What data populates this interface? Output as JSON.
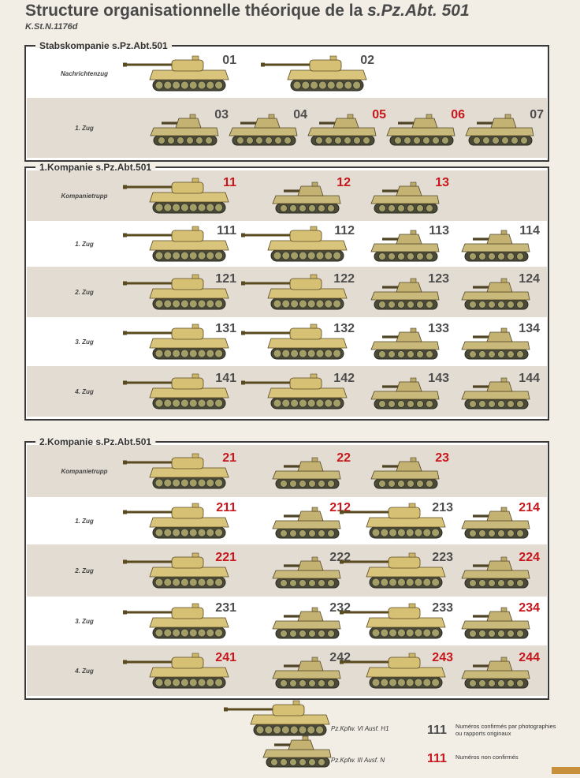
{
  "title": {
    "text": "Structure organisationnelle théorique de la",
    "emphasis": "s.Pz.Abt. 501"
  },
  "subtitle": "K.St.N.1176d",
  "sections": [
    {
      "label": "Stabskompanie s.Pz.Abt.501",
      "rows": [
        {
          "label": "Nachrichtenzug",
          "vehicles": [
            {
              "number": "01",
              "model": "Pz.Kpfw. VI Ausf. H1",
              "color": "#4d4d4d"
            },
            {
              "number": "02",
              "model": "Pz.Kpfw. VI Ausf. H1",
              "color": "#4d4d4d"
            }
          ]
        },
        {
          "label": "1. Zug",
          "vehicles": [
            {
              "number": "03",
              "model": "Pz.Kpfw. III Ausf. N",
              "color": "#4d4d4d"
            },
            {
              "number": "04",
              "model": "Pz.Kpfw. III Ausf. N",
              "color": "#4d4d4d"
            },
            {
              "number": "05",
              "model": "Pz.Kpfw. III Ausf. N",
              "color": "#c8161d"
            },
            {
              "number": "06",
              "model": "Pz.Kpfw. III Ausf. N",
              "color": "#c8161d"
            },
            {
              "number": "07",
              "model": "Pz.Kpfw. III Ausf. N",
              "color": "#4d4d4d"
            }
          ]
        }
      ]
    },
    {
      "label": "1.Kompanie s.Pz.Abt.501",
      "rows": [
        {
          "label": "Kompanietrupp",
          "vehicles": [
            {
              "number": "11",
              "model": "Pz.Kpfw. VI Ausf. H1",
              "color": "#c8161d"
            },
            {
              "number": "12",
              "model": "Pz.Kpfw. III Ausf. N",
              "color": "#c8161d"
            },
            {
              "number": "13",
              "model": "Pz.Kpfw. III Ausf. N",
              "color": "#c8161d"
            }
          ]
        },
        {
          "label": "1. Zug",
          "vehicles": [
            {
              "number": "111",
              "model": "Pz.Kpfw. VI Ausf. H1",
              "color": "#4d4d4d"
            },
            {
              "number": "112",
              "model": "Pz.Kpfw. VI Ausf. H1",
              "color": "#4d4d4d"
            },
            {
              "number": "113",
              "model": "Pz.Kpfw. III Ausf. N",
              "color": "#4d4d4d"
            },
            {
              "number": "114",
              "model": "Pz.Kpfw. III Ausf. N",
              "color": "#4d4d4d"
            }
          ]
        },
        {
          "label": "2. Zug",
          "vehicles": [
            {
              "number": "121",
              "model": "Pz.Kpfw. VI Ausf. H1",
              "color": "#4d4d4d"
            },
            {
              "number": "122",
              "model": "Pz.Kpfw. VI Ausf. H1",
              "color": "#4d4d4d"
            },
            {
              "number": "123",
              "model": "Pz.Kpfw. III Ausf. N",
              "color": "#4d4d4d"
            },
            {
              "number": "124",
              "model": "Pz.Kpfw. III Ausf. N",
              "color": "#4d4d4d"
            }
          ]
        },
        {
          "label": "3. Zug",
          "vehicles": [
            {
              "number": "131",
              "model": "Pz.Kpfw. VI Ausf. H1",
              "color": "#4d4d4d"
            },
            {
              "number": "132",
              "model": "Pz.Kpfw. VI Ausf. H1",
              "color": "#4d4d4d"
            },
            {
              "number": "133",
              "model": "Pz.Kpfw. III Ausf. N",
              "color": "#4d4d4d"
            },
            {
              "number": "134",
              "model": "Pz.Kpfw. III Ausf. N",
              "color": "#4d4d4d"
            }
          ]
        },
        {
          "label": "4. Zug",
          "vehicles": [
            {
              "number": "141",
              "model": "Pz.Kpfw. VI Ausf. H1",
              "color": "#4d4d4d"
            },
            {
              "number": "142",
              "model": "Pz.Kpfw. VI Ausf. H1",
              "color": "#4d4d4d"
            },
            {
              "number": "143",
              "model": "Pz.Kpfw. III Ausf. N",
              "color": "#4d4d4d"
            },
            {
              "number": "144",
              "model": "Pz.Kpfw. III Ausf. N",
              "color": "#4d4d4d"
            }
          ]
        }
      ]
    },
    {
      "label": "2.Kompanie s.Pz.Abt.501",
      "rows": [
        {
          "label": "Kompanietrupp",
          "vehicles": [
            {
              "number": "21",
              "model": "Pz.Kpfw. VI Ausf. H1",
              "color": "#c8161d"
            },
            {
              "number": "22",
              "model": "Pz.Kpfw. III Ausf. N",
              "color": "#c8161d"
            },
            {
              "number": "23",
              "model": "Pz.Kpfw. III Ausf. N",
              "color": "#c8161d"
            }
          ]
        },
        {
          "label": "1. Zug",
          "vehicles": [
            {
              "number": "211",
              "model": "Pz.Kpfw. VI Ausf. H1",
              "color": "#c8161d"
            },
            {
              "number": "212",
              "model": "Pz.Kpfw. III Ausf. N",
              "color": "#c8161d"
            },
            {
              "number": "213",
              "model": "Pz.Kpfw. VI Ausf. H1",
              "color": "#4d4d4d"
            },
            {
              "number": "214",
              "model": "Pz.Kpfw. III Ausf. N",
              "color": "#c8161d"
            }
          ]
        },
        {
          "label": "2. Zug",
          "vehicles": [
            {
              "number": "221",
              "model": "Pz.Kpfw. VI Ausf. H1",
              "color": "#c8161d"
            },
            {
              "number": "222",
              "model": "Pz.Kpfw. III Ausf. N",
              "color": "#4d4d4d"
            },
            {
              "number": "223",
              "model": "Pz.Kpfw. VI Ausf. H1",
              "color": "#4d4d4d"
            },
            {
              "number": "224",
              "model": "Pz.Kpfw. III Ausf. N",
              "color": "#c8161d"
            }
          ]
        },
        {
          "label": "3. Zug",
          "vehicles": [
            {
              "number": "231",
              "model": "Pz.Kpfw. VI Ausf. H1",
              "color": "#4d4d4d"
            },
            {
              "number": "232",
              "model": "Pz.Kpfw. III Ausf. N",
              "color": "#4d4d4d"
            },
            {
              "number": "233",
              "model": "Pz.Kpfw. VI Ausf. H1",
              "color": "#4d4d4d"
            },
            {
              "number": "234",
              "model": "Pz.Kpfw. III Ausf. N",
              "color": "#c8161d"
            }
          ]
        },
        {
          "label": "4. Zug",
          "vehicles": [
            {
              "number": "241",
              "model": "Pz.Kpfw. VI Ausf. H1",
              "color": "#c8161d"
            },
            {
              "number": "242",
              "model": "Pz.Kpfw. III Ausf. N",
              "color": "#4d4d4d"
            },
            {
              "number": "243",
              "model": "Pz.Kpfw. VI Ausf. H1",
              "color": "#c8161d"
            },
            {
              "number": "244",
              "model": "Pz.Kpfw. III Ausf. N",
              "color": "#c8161d"
            }
          ]
        }
      ]
    }
  ],
  "legend": {
    "models": [
      "Pz.Kpfw. VI Ausf. H1",
      "Pz.Kpfw. III Ausf. N"
    ],
    "number_styles": [
      {
        "sample": "111",
        "color": "#4d4d4d",
        "text": [
          "Numéros confirmés par photographies",
          "ou rapports originaux"
        ]
      },
      {
        "sample": "111",
        "color": "#c8161d",
        "text": [
          "Numéros non confirmés"
        ]
      }
    ]
  }
}
